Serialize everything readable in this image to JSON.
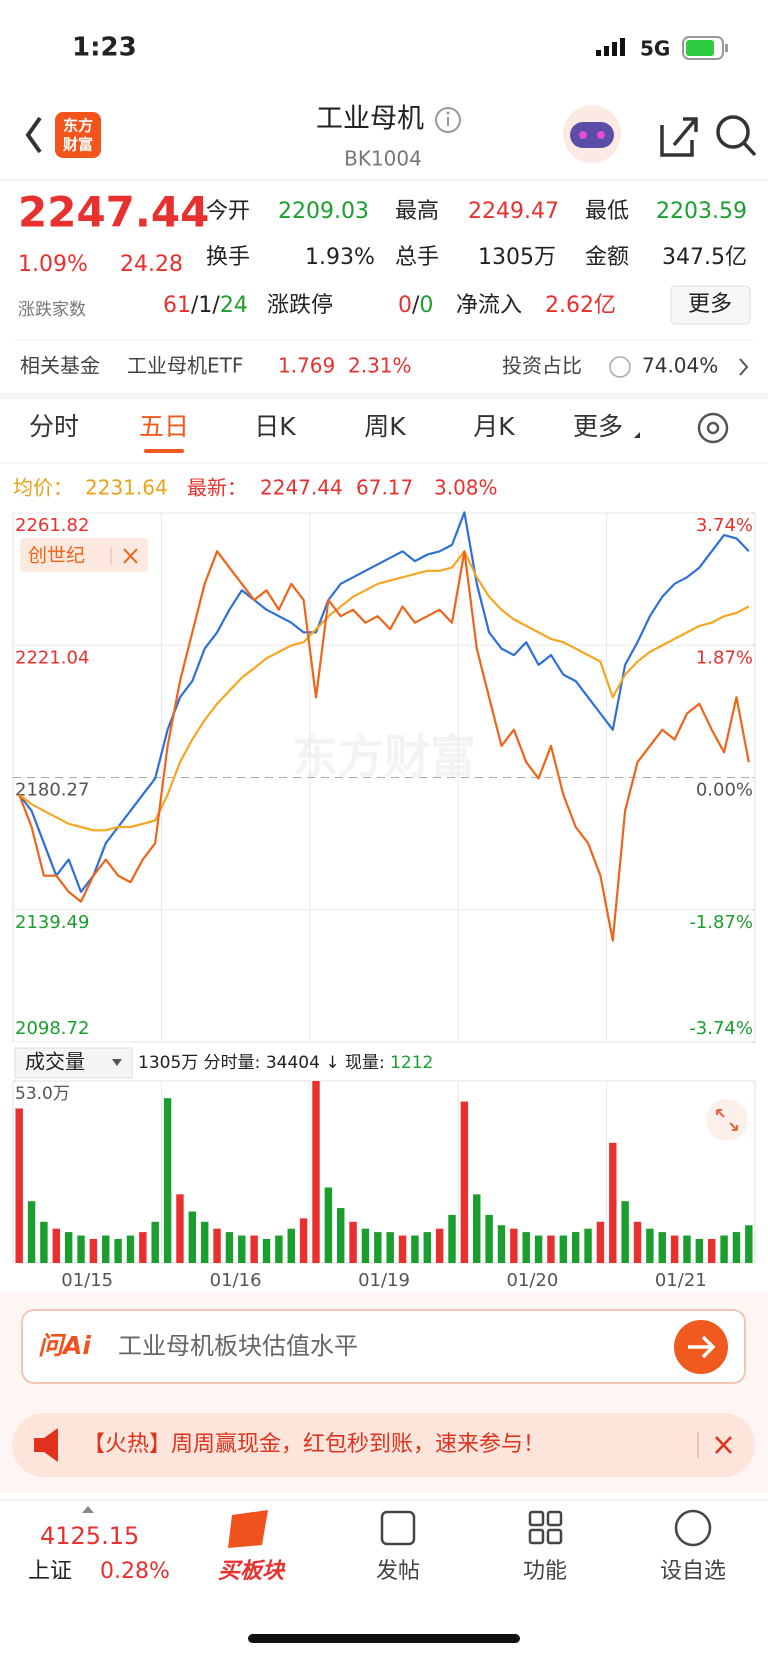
{
  "status_bar": {
    "time": "1:23",
    "network": "5G"
  },
  "header": {
    "logo": [
      "东方",
      "财富"
    ],
    "title": "工业母机",
    "code": "BK1004"
  },
  "quote": {
    "price": "2247.44",
    "change_pct": "1.09%",
    "change": "24.28",
    "open_label": "今开",
    "open": "2209.03",
    "high_label": "最高",
    "high": "2249.47",
    "low_label": "最低",
    "low": "2203.59",
    "turnover_label": "换手",
    "turnover": "1.93%",
    "volume_label": "总手",
    "volume": "1305万",
    "amount_label": "金额",
    "amount": "347.5亿",
    "breadth_label": "涨跌家数",
    "breadth": [
      "61",
      "/",
      "1",
      "/",
      "24"
    ],
    "limit_label": "涨跌停",
    "limit": [
      "0",
      "/",
      "0"
    ],
    "inflow_label": "净流入",
    "inflow": "2.62亿",
    "more": "更多"
  },
  "fund": {
    "label": "相关基金",
    "name": "工业母机ETF",
    "price": "1.769",
    "change": "2.31%",
    "ratio_label": "投资占比",
    "ratio": "74.04%"
  },
  "tabs": {
    "items": [
      "分时",
      "五日",
      "日K",
      "周K",
      "月K",
      "更多"
    ],
    "active": 1
  },
  "chart_header": {
    "avg_label": "均价：",
    "avg": "2231.64",
    "last_label": "最新：",
    "last": "2247.44",
    "change": "67.17",
    "change_pct": "3.08%"
  },
  "watermark": "东方财富",
  "volume_header": {
    "selector": "成交量",
    "items": [
      "1305万",
      "分时量:",
      "34404",
      "↓",
      "现量:",
      "1212"
    ]
  },
  "chart_data": [
    {
      "type": "line",
      "categories": [
        null,
        null,
        null,
        null,
        null,
        null,
        null,
        null,
        null,
        null,
        null,
        null,
        null,
        null,
        null,
        null,
        null,
        null,
        null,
        null,
        null,
        null,
        null,
        null,
        null,
        null,
        null,
        null,
        null,
        null,
        null,
        null,
        null,
        null,
        null,
        null,
        null,
        null,
        null,
        null,
        null,
        null,
        null,
        null,
        null,
        null,
        null,
        null,
        null,
        null,
        null,
        null,
        null,
        null,
        null,
        null,
        null,
        null,
        null,
        null
      ],
      "ylim": [
        2098.72,
        2261.82
      ],
      "yticks": [
        2261.82,
        2221.04,
        2180.27,
        2139.49,
        2098.72
      ],
      "ytick_colors": [
        "#e8302e",
        "#e8302e",
        "#555555",
        "#1a9e2e",
        "#1a9e2e"
      ],
      "dashed_ytick": 2,
      "y2lim": [
        -3.74,
        3.74
      ],
      "y2ticks": [
        {
          "value": 3.74,
          "label": "3.74%"
        },
        {
          "value": 1.87,
          "label": "1.87%"
        },
        {
          "value": 0,
          "label": "0.00%"
        },
        {
          "value": -1.87,
          "label": "-1.87%"
        },
        {
          "value": -3.74,
          "label": "-3.74%"
        }
      ],
      "series": [
        {
          "color": "#2f6fd8",
          "values": [
            2175,
            2170,
            2160,
            2150,
            2155,
            2145,
            2150,
            2160,
            2165,
            2170,
            2175,
            2180,
            2195,
            2205,
            2210,
            2220,
            2225,
            2232,
            2238,
            2235,
            2232,
            2230,
            2228,
            2225,
            2225,
            2235,
            2240,
            2242,
            2244,
            2246,
            2248,
            2250,
            2247,
            2249,
            2250,
            2252,
            2262,
            2240,
            2225,
            2220,
            2218,
            2222,
            2215,
            2218,
            2212,
            2210,
            2205,
            2200,
            2195,
            2215,
            2222,
            2230,
            2236,
            2240,
            2242,
            2245,
            2250,
            2255,
            2254,
            2250
          ]
        },
        {
          "color": "#f5a623",
          "values": [
            2175,
            2172,
            2170,
            2168,
            2166,
            2165,
            2164,
            2164,
            2165,
            2165,
            2166,
            2167,
            2175,
            2185,
            2192,
            2198,
            2203,
            2207,
            2211,
            2214,
            2217,
            2219,
            2221,
            2222,
            2226,
            2230,
            2233,
            2236,
            2238,
            2240,
            2241,
            2242,
            2243,
            2244,
            2244,
            2245,
            2250,
            2242,
            2236,
            2232,
            2229,
            2227,
            2225,
            2223,
            2222,
            2220,
            2218,
            2216,
            2205,
            2212,
            2216,
            2219,
            2221,
            2223,
            2225,
            2227,
            2228,
            2230,
            2231,
            2233
          ]
        },
        {
          "name": "创世纪",
          "color": "#ee6418",
          "values": [
            2175,
            2165,
            2150,
            2150,
            2145,
            2142,
            2150,
            2155,
            2150,
            2148,
            2155,
            2160,
            2190,
            2210,
            2225,
            2240,
            2250,
            2245,
            2240,
            2235,
            2238,
            2232,
            2240,
            2235,
            2205,
            2235,
            2230,
            2232,
            2228,
            2230,
            2226,
            2233,
            2228,
            2230,
            2232,
            2228,
            2250,
            2220,
            2205,
            2190,
            2195,
            2185,
            2180,
            2190,
            2175,
            2165,
            2160,
            2150,
            2130,
            2170,
            2185,
            2190,
            2195,
            2192,
            2200,
            2203,
            2195,
            2188,
            2205,
            2185
          ]
        }
      ]
    },
    {
      "type": "bar",
      "categories": [
        null,
        null,
        null,
        null,
        null,
        null,
        "01/15",
        null,
        null,
        null,
        null,
        null,
        null,
        null,
        null,
        null,
        null,
        null,
        "01/16",
        null,
        null,
        null,
        null,
        null,
        null,
        null,
        null,
        null,
        null,
        null,
        "01/19",
        null,
        null,
        null,
        null,
        null,
        null,
        null,
        null,
        null,
        null,
        null,
        "01/20",
        null,
        null,
        null,
        null,
        null,
        null,
        null,
        null,
        null,
        null,
        null,
        "01/21",
        null,
        null,
        null,
        null,
        null
      ],
      "ylim": [
        0,
        53.0
      ],
      "yticks": [
        {
          "value": 53.0,
          "label": "53.0万"
        }
      ],
      "values": [
        45,
        18,
        12,
        10,
        9,
        8,
        7,
        8,
        7,
        8,
        9,
        12,
        48,
        20,
        15,
        12,
        10,
        9,
        8,
        8,
        7,
        8,
        10,
        13,
        53,
        22,
        16,
        12,
        10,
        9,
        9,
        8,
        8,
        9,
        10,
        14,
        47,
        20,
        14,
        11,
        10,
        9,
        8,
        8,
        8,
        9,
        10,
        12,
        35,
        18,
        12,
        10,
        9,
        8,
        8,
        7,
        7,
        8,
        9,
        11
      ],
      "colors": [
        "#e8302e",
        "#1a9e2e",
        "#1a9e2e",
        "#e8302e",
        "#1a9e2e",
        "#1a9e2e",
        "#e8302e",
        "#1a9e2e",
        "#1a9e2e",
        "#1a9e2e",
        "#e8302e",
        "#1a9e2e",
        "#1a9e2e",
        "#e8302e",
        "#1a9e2e",
        "#1a9e2e",
        "#e8302e",
        "#1a9e2e",
        "#1a9e2e",
        "#e8302e",
        "#1a9e2e",
        "#1a9e2e",
        "#1a9e2e",
        "#e8302e",
        "#e8302e",
        "#1a9e2e",
        "#1a9e2e",
        "#e8302e",
        "#1a9e2e",
        "#1a9e2e",
        "#1a9e2e",
        "#e8302e",
        "#1a9e2e",
        "#1a9e2e",
        "#e8302e",
        "#1a9e2e",
        "#e8302e",
        "#1a9e2e",
        "#1a9e2e",
        "#1a9e2e",
        "#e8302e",
        "#1a9e2e",
        "#1a9e2e",
        "#e8302e",
        "#1a9e2e",
        "#1a9e2e",
        "#1a9e2e",
        "#e8302e",
        "#e8302e",
        "#1a9e2e",
        "#e8302e",
        "#1a9e2e",
        "#1a9e2e",
        "#e8302e",
        "#1a9e2e",
        "#1a9e2e",
        "#e8302e",
        "#1a9e2e",
        "#1a9e2e",
        "#1a9e2e"
      ]
    }
  ],
  "ask_ai": {
    "logo": "问Ai",
    "prompt": "工业母机板块估值水平"
  },
  "banner": {
    "text": "【火热】周周赢现金，红包秒到账，速来参与！"
  },
  "nav": {
    "index_value": "4125.15",
    "index_name": "上证",
    "index_change": "0.28%",
    "items": [
      "买板块",
      "发帖",
      "功能",
      "设自选"
    ]
  }
}
